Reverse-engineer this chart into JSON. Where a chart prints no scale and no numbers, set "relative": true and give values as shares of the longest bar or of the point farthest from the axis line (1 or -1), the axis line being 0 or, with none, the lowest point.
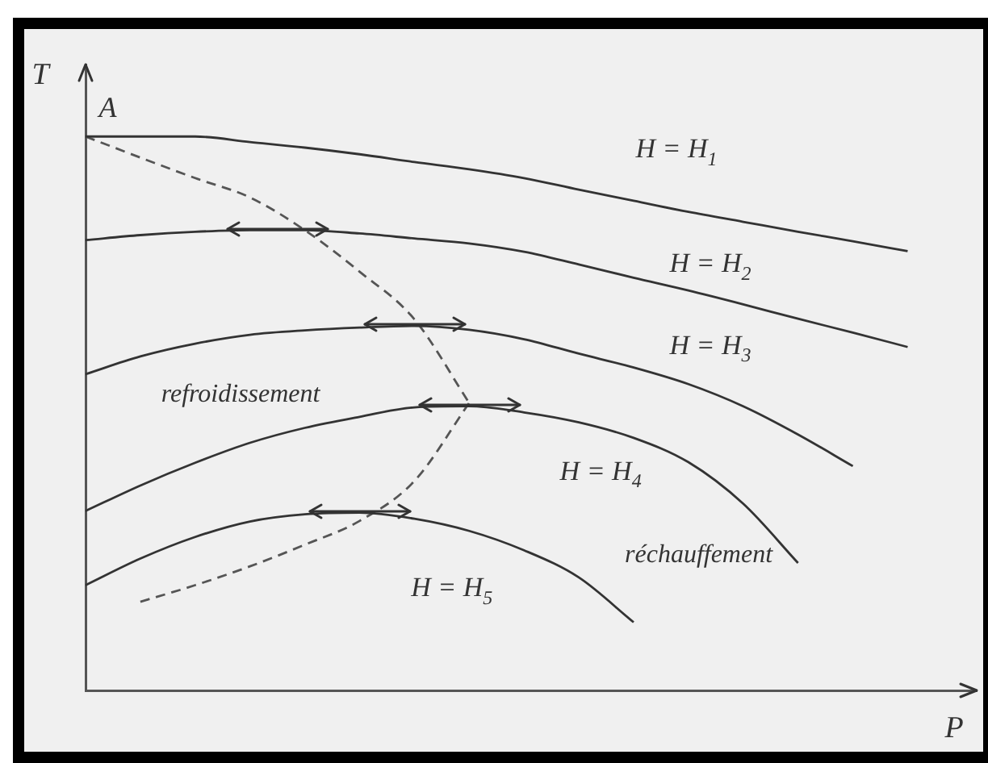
{
  "chart_data": {
    "type": "line",
    "relative": true,
    "xlabel": "P",
    "ylabel": "T",
    "line_style": "solid",
    "categories": [
      null,
      null,
      null,
      null,
      null,
      null,
      null,
      null,
      null,
      null,
      null,
      null,
      null,
      null,
      null,
      null
    ],
    "series": [
      {
        "name": "H = H$_{1}$",
        "color": "#333333",
        "values": [
          1,
          1,
          1,
          0.99,
          0.98,
          0.968,
          0.954,
          0.941,
          0.925,
          0.904,
          0.884,
          0.864,
          0.846,
          0.828,
          0.811,
          0.793
        ]
      },
      {
        "name": "H = H$_{2}$",
        "color": "#333333",
        "values": [
          0.813,
          0.822,
          0.828,
          0.831,
          0.831,
          0.825,
          0.816,
          0.807,
          0.792,
          0.769,
          0.745,
          0.722,
          0.697,
          0.671,
          0.646,
          0.62
        ]
      },
      {
        "name": "H = H$_{3}$",
        "color": "#333333",
        "values": [
          0.571,
          0.603,
          0.626,
          0.642,
          0.65,
          0.655,
          0.658,
          0.651,
          0.634,
          0.608,
          0.583,
          0.553,
          0.513,
          0.462,
          0.405,
          null
        ]
      },
      {
        "name": "H = H$_{4}$",
        "color": "#333333",
        "values": [
          0.324,
          0.37,
          0.411,
          0.447,
          0.474,
          0.494,
          0.511,
          0.513,
          0.502,
          0.484,
          0.456,
          0.412,
          0.337,
          0.23,
          null,
          null
        ]
      },
      {
        "name": "H = H$_{5}$",
        "color": "#333333",
        "values": [
          0.19,
          0.238,
          0.277,
          0.305,
          0.318,
          0.321,
          0.31,
          0.288,
          0.253,
          0.204,
          0.123,
          null,
          null,
          null,
          null,
          null
        ]
      },
      {
        "color": "#555555",
        "line_style": "dashed",
        "values": [
          1,
          0.962,
          0.925,
          0.89,
          0.831,
          0.756,
          0.67,
          0.519,
          null,
          null,
          null,
          null,
          null,
          null,
          null,
          null
        ]
      },
      {
        "color": "#555555",
        "line_style": "dashed",
        "values": [
          null,
          0.16,
          0.19,
          0.224,
          0.263,
          0.306,
          0.378,
          0.519,
          null,
          null,
          null,
          null,
          null,
          null,
          null,
          null
        ]
      }
    ],
    "annotations": [
      "A",
      "refroidissement",
      "réchauffement"
    ]
  }
}
